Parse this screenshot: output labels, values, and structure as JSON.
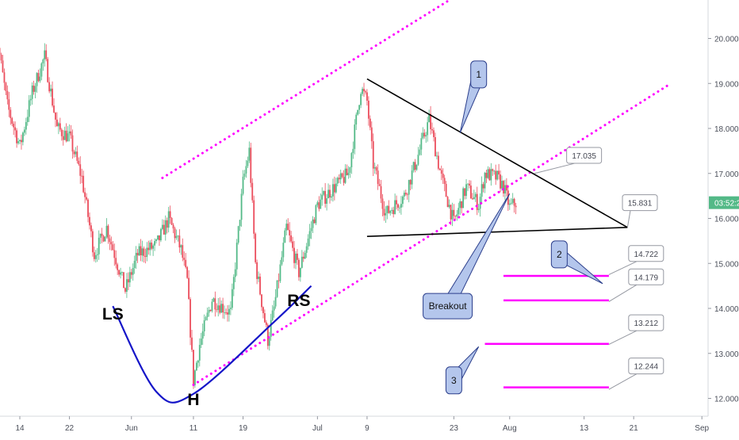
{
  "chart_data": {
    "type": "line",
    "style": "candlestick",
    "colors": {
      "up": "#53b987",
      "down": "#eb4d5c",
      "channel": "#ff00ff",
      "target_lines": "#ff00ff",
      "curve": "#1515c8",
      "callout_fill": "#b4c6ec",
      "callout_stroke": "#2c3f8c",
      "price_tag": "#434651"
    },
    "x_axis": {
      "ticks": [
        {
          "label": "14",
          "date": "2018-05-14"
        },
        {
          "label": "22",
          "date": "2018-05-22"
        },
        {
          "label": "Jun",
          "date": "2018-06-01"
        },
        {
          "label": "11",
          "date": "2018-06-11"
        },
        {
          "label": "19",
          "date": "2018-06-19"
        },
        {
          "label": "Jul",
          "date": "2018-07-01"
        },
        {
          "label": "9",
          "date": "2018-07-09"
        },
        {
          "label": "23",
          "date": "2018-07-23"
        },
        {
          "label": "Aug",
          "date": "2018-08-01"
        },
        {
          "label": "13",
          "date": "2018-08-13"
        },
        {
          "label": "21",
          "date": "2018-08-21"
        },
        {
          "label": "Sep",
          "date": "2018-09-01"
        }
      ]
    },
    "y_axis": {
      "ticks": [
        "12.000",
        "13.000",
        "14.000",
        "15.000",
        "16.000",
        "17.000",
        "18.000",
        "19.000",
        "20.000"
      ],
      "range": [
        11.5,
        20.9
      ]
    },
    "current_price_label": "03:52:2",
    "current_price": 16.35,
    "price_waypoints": [
      [
        "2018-05-10",
        20.3
      ],
      [
        "2018-05-12",
        18.5
      ],
      [
        "2018-05-14",
        17.6
      ],
      [
        "2018-05-16",
        18.8
      ],
      [
        "2018-05-18",
        19.6
      ],
      [
        "2018-05-20",
        18.0
      ],
      [
        "2018-05-22",
        17.8
      ],
      [
        "2018-05-24",
        16.9
      ],
      [
        "2018-05-26",
        15.2
      ],
      [
        "2018-05-28",
        15.8
      ],
      [
        "2018-05-31",
        14.4
      ],
      [
        "2018-06-02",
        15.2
      ],
      [
        "2018-06-05",
        15.4
      ],
      [
        "2018-06-07",
        16.0
      ],
      [
        "2018-06-09",
        15.3
      ],
      [
        "2018-06-10",
        14.6
      ],
      [
        "2018-06-11",
        12.4
      ],
      [
        "2018-06-12",
        13.2
      ],
      [
        "2018-06-14",
        14.2
      ],
      [
        "2018-06-17",
        13.9
      ],
      [
        "2018-06-19",
        16.8
      ],
      [
        "2018-06-20",
        17.5
      ],
      [
        "2018-06-21",
        15.0
      ],
      [
        "2018-06-23",
        13.3
      ],
      [
        "2018-06-24",
        14.0
      ],
      [
        "2018-06-26",
        15.8
      ],
      [
        "2018-06-28",
        14.8
      ],
      [
        "2018-07-01",
        16.3
      ],
      [
        "2018-07-03",
        16.6
      ],
      [
        "2018-07-06",
        17.0
      ],
      [
        "2018-07-08",
        18.9
      ],
      [
        "2018-07-09",
        18.6
      ],
      [
        "2018-07-10",
        17.2
      ],
      [
        "2018-07-12",
        16.1
      ],
      [
        "2018-07-15",
        16.5
      ],
      [
        "2018-07-17",
        17.3
      ],
      [
        "2018-07-19",
        18.2
      ],
      [
        "2018-07-21",
        16.9
      ],
      [
        "2018-07-23",
        15.9
      ],
      [
        "2018-07-25",
        16.7
      ],
      [
        "2018-07-27",
        16.3
      ],
      [
        "2018-07-28",
        17.0
      ],
      [
        "2018-07-30",
        16.9
      ],
      [
        "2018-07-31",
        16.7
      ],
      [
        "2018-08-01",
        16.25
      ],
      [
        "2018-08-02",
        16.35
      ]
    ],
    "annotations": {
      "pattern_labels": [
        {
          "text": "LS",
          "date": "2018-05-29",
          "price": 13.75
        },
        {
          "text": "H",
          "date": "2018-06-11",
          "price": 11.85
        },
        {
          "text": "RS",
          "date": "2018-06-28",
          "price": 14.05
        }
      ],
      "callouts": [
        {
          "text": "1",
          "date": "2018-07-27",
          "price": 19.2,
          "tip_date": "2018-07-24",
          "tip_price": 17.9
        },
        {
          "text": "2",
          "date": "2018-08-09",
          "price": 15.2,
          "tip_date": "2018-08-16",
          "tip_price": 14.55
        },
        {
          "text": "3",
          "date": "2018-07-23",
          "price": 12.4,
          "tip_date": "2018-07-27",
          "tip_price": 13.15
        },
        {
          "text": "Breakout",
          "date": "2018-07-22",
          "price": 14.05,
          "tip_date": "2018-08-01",
          "tip_price": 16.55
        }
      ],
      "price_tags": [
        {
          "text": "17.035",
          "date": "2018-08-13",
          "price": 17.4,
          "anchor_date": "2018-08-05",
          "anchor_price": 17.0
        },
        {
          "text": "15.831",
          "date": "2018-08-22",
          "price": 16.35,
          "anchor_date": "2018-08-20",
          "anchor_price": 15.8
        },
        {
          "text": "14.722",
          "date": "2018-08-23",
          "price": 15.22,
          "anchor_date": "2018-08-17",
          "anchor_price": 14.75
        },
        {
          "text": "14.179",
          "date": "2018-08-23",
          "price": 14.7,
          "anchor_date": "2018-08-17",
          "anchor_price": 14.15
        },
        {
          "text": "13.212",
          "date": "2018-08-23",
          "price": 13.68,
          "anchor_date": "2018-08-17",
          "anchor_price": 13.2
        },
        {
          "text": "12.244",
          "date": "2018-08-23",
          "price": 12.72,
          "anchor_date": "2018-08-17",
          "anchor_price": 12.2
        }
      ],
      "trendlines": [
        {
          "name": "descending",
          "from": [
            "2018-07-09",
            19.1
          ],
          "to": [
            "2018-08-20",
            15.8
          ]
        },
        {
          "name": "support",
          "from": [
            "2018-07-09",
            15.6
          ],
          "to": [
            "2018-08-20",
            15.8
          ]
        }
      ],
      "channel": [
        {
          "name": "upper",
          "from": [
            "2018-06-06",
            16.9
          ],
          "to": [
            "2018-07-24",
            21.0
          ]
        },
        {
          "name": "lower",
          "from": [
            "2018-06-11",
            12.3
          ],
          "to": [
            "2018-08-27",
            19.0
          ]
        }
      ],
      "targets": [
        {
          "price": 14.722,
          "from": "2018-07-31",
          "to": "2018-08-17"
        },
        {
          "price": 14.179,
          "from": "2018-07-31",
          "to": "2018-08-17"
        },
        {
          "price": 13.212,
          "from": "2018-07-28",
          "to": "2018-08-17"
        },
        {
          "price": 12.244,
          "from": "2018-07-31",
          "to": "2018-08-17"
        }
      ],
      "head_curve": [
        [
          "2018-05-29",
          14.05
        ],
        [
          "2018-06-05",
          12.15
        ],
        [
          "2018-06-11",
          12.1
        ],
        [
          "2018-06-24",
          13.7
        ],
        [
          "2018-06-30",
          14.5
        ]
      ]
    }
  }
}
